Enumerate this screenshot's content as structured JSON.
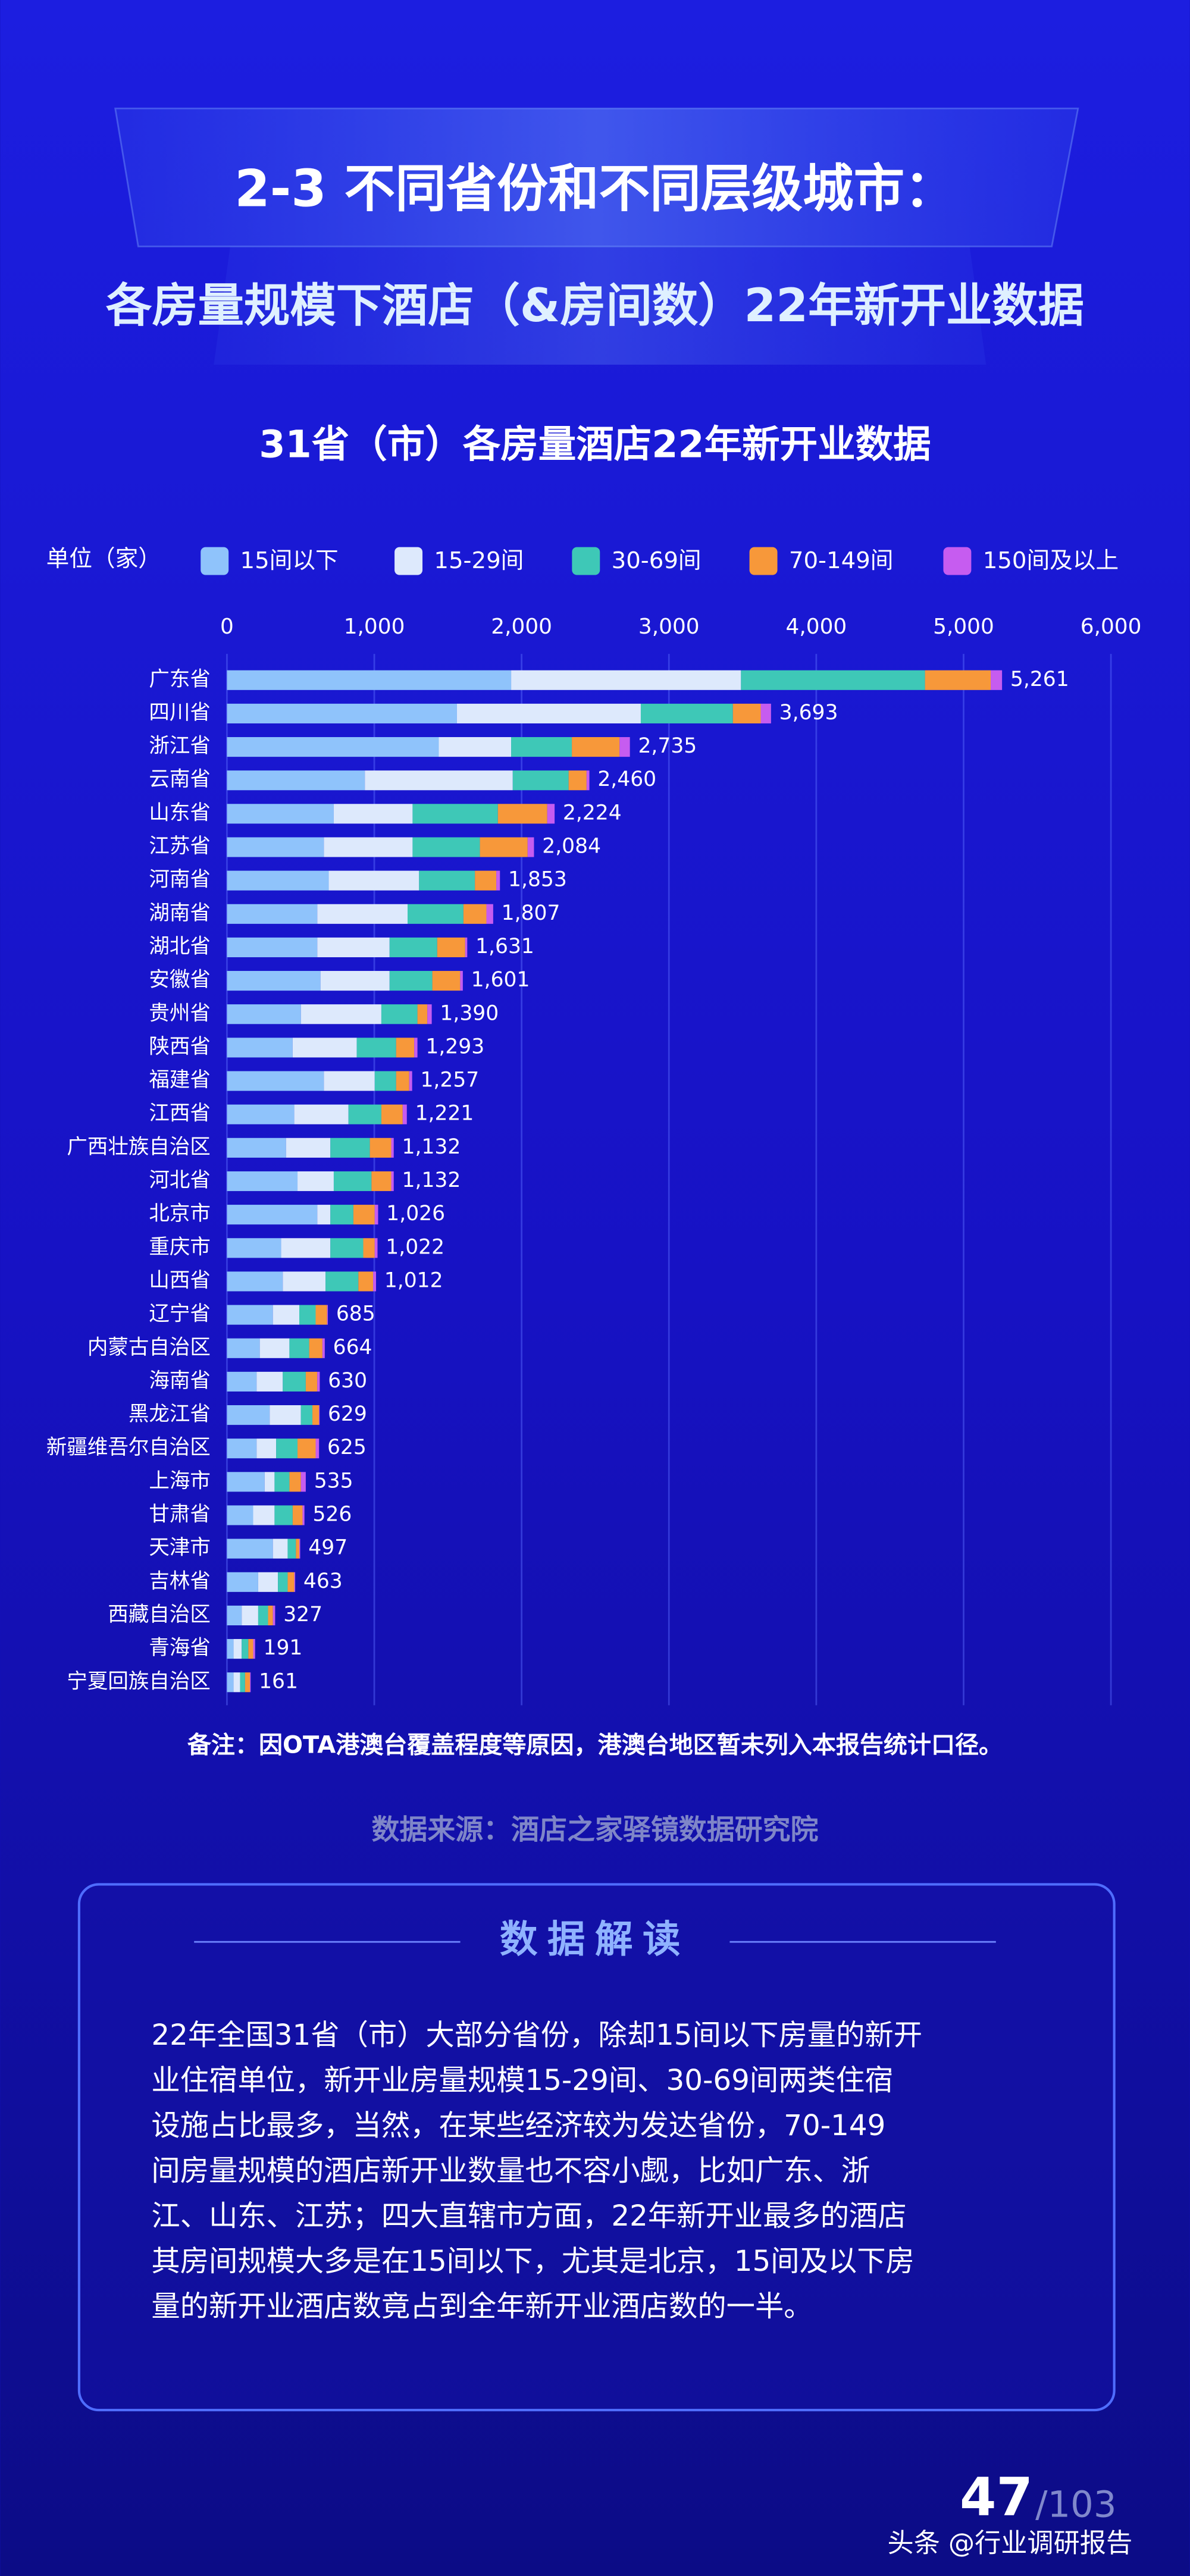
{
  "header": {
    "title": "2-3 不同省份和不同层级城市：",
    "subtitle": "各房量规模下酒店（&房间数）22年新开业数据"
  },
  "chart_data": {
    "type": "stacked-barh",
    "title": "31省（市）各房量酒店22年新开业数据",
    "unit": "单位（家）",
    "categories": [
      "广东省",
      "四川省",
      "浙江省",
      "云南省",
      "山东省",
      "江苏省",
      "河南省",
      "湖南省",
      "湖北省",
      "安徽省",
      "贵州省",
      "陕西省",
      "福建省",
      "江西省",
      "广西壮族自治区",
      "河北省",
      "北京市",
      "重庆市",
      "山西省",
      "辽宁省",
      "内蒙古自治区",
      "海南省",
      "黑龙江省",
      "新疆维吾尔自治区",
      "上海市",
      "甘肃省",
      "天津市",
      "吉林省",
      "西藏自治区",
      "青海省",
      "宁夏回族自治区"
    ],
    "series": [
      {
        "name": "15间以下",
        "color": "#8fc3fb",
        "values": [
          1929,
          1561,
          1438,
          936,
          725,
          658,
          691,
          613,
          613,
          635,
          502,
          446,
          658,
          457,
          401,
          479,
          613,
          368,
          379,
          312,
          223,
          201,
          290,
          201,
          256,
          178,
          312,
          212,
          100,
          45,
          45
        ]
      },
      {
        "name": "15-29间",
        "color": "#dde9fc",
        "values": [
          1560,
          1248,
          491,
          1004,
          535,
          602,
          613,
          613,
          491,
          469,
          546,
          435,
          345,
          368,
          301,
          246,
          89,
          334,
          290,
          179,
          201,
          178,
          212,
          133,
          67,
          145,
          100,
          134,
          112,
          55,
          44
        ]
      },
      {
        "name": "30-69间",
        "color": "#3ec8b7",
        "values": [
          1249,
          625,
          412,
          379,
          579,
          457,
          379,
          379,
          323,
          290,
          245,
          267,
          145,
          223,
          268,
          256,
          156,
          223,
          223,
          111,
          134,
          156,
          78,
          145,
          101,
          123,
          56,
          66,
          67,
          45,
          34
        ]
      },
      {
        "name": "70-149间",
        "color": "#f7983a",
        "values": [
          446,
          189,
          324,
          122,
          335,
          324,
          145,
          156,
          190,
          189,
          67,
          123,
          89,
          145,
          145,
          134,
          145,
          78,
          100,
          78,
          90,
          78,
          45,
          123,
          78,
          67,
          23,
          45,
          33,
          33,
          33
        ]
      },
      {
        "name": "150间及以上",
        "color": "#c65cf0",
        "values": [
          77,
          70,
          70,
          19,
          50,
          43,
          25,
          46,
          14,
          18,
          30,
          22,
          20,
          28,
          17,
          17,
          23,
          19,
          20,
          5,
          16,
          17,
          4,
          23,
          33,
          13,
          6,
          6,
          15,
          13,
          5
        ]
      }
    ],
    "totals": [
      5261,
      3693,
      2735,
      2460,
      2224,
      2084,
      1853,
      1807,
      1631,
      1601,
      1390,
      1293,
      1257,
      1221,
      1132,
      1132,
      1026,
      1022,
      1012,
      685,
      664,
      630,
      629,
      625,
      535,
      526,
      497,
      463,
      327,
      191,
      161
    ],
    "value_labels": [
      "5,261",
      "3,693",
      "2,735",
      "2,460",
      "2,224",
      "2,084",
      "1,853",
      "1,807",
      "1,631",
      "1,601",
      "1,390",
      "1,293",
      "1,257",
      "1,221",
      "1,132",
      "1,132",
      "1,026",
      "1,022",
      "1,012",
      "685",
      "664",
      "630",
      "629",
      "625",
      "535",
      "526",
      "497",
      "463",
      "327",
      "191",
      "161"
    ],
    "xlim": [
      0,
      6000
    ],
    "xticks": [
      0,
      {
        "value": 1000,
        "label": "1,000"
      },
      {
        "value": 2000,
        "label": "2,000"
      },
      {
        "value": 3000,
        "label": "3,000"
      },
      {
        "value": 4000,
        "label": "4,000"
      },
      {
        "value": 5000,
        "label": "5,000"
      },
      {
        "value": 6000,
        "label": "6,000"
      }
    ],
    "grid": true,
    "legend": "top"
  },
  "note": "备注：因OTA港澳台覆盖程度等原因，港澳台地区暂未列入本报告统计口径。",
  "source": "数据来源：酒店之家驿镜数据研究院",
  "interpretation": {
    "title": "数据解读",
    "lines": [
      "22年全国31省（市）大部分省份，除却15间以下房量的新开",
      "业住宿单位，新开业房量规模15-29间、30-69间两类住宿",
      "设施占比最多，当然，在某些经济较为发达省份，70-149",
      "间房量规模的酒店新开业数量也不容小觑，比如广东、浙",
      "江、山东、江苏；四大直辖市方面，22年新开业最多的酒店",
      "其房间规模大多是在15间以下，尤其是北京，15间及以下房",
      "量的新开业酒店数竟占到全年新开业酒店数的一半。"
    ]
  },
  "footer": {
    "page": "47",
    "total": "/103",
    "watermark": "头条 @行业调研报告"
  }
}
